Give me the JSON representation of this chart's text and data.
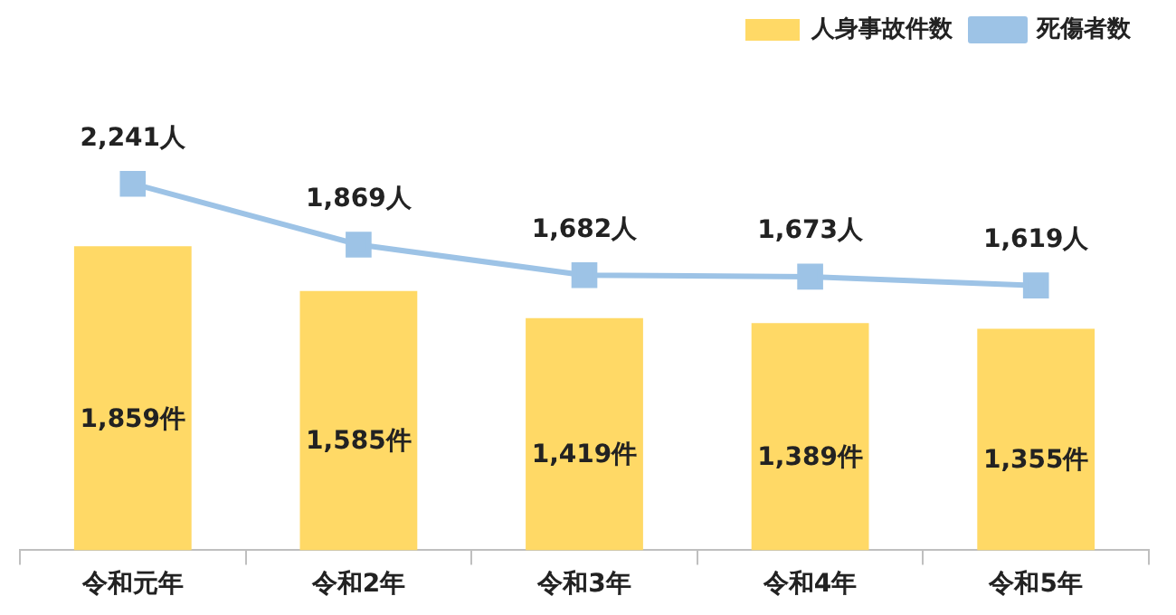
{
  "chart_data": {
    "type": "bar",
    "categories": [
      "令和元年",
      "令和2年",
      "令和3年",
      "令和4年",
      "令和5年"
    ],
    "series": [
      {
        "name": "人身事故件数",
        "color": "#ffd966",
        "values": [
          1859,
          1585,
          1419,
          1389,
          1355
        ],
        "value_labels": [
          "1,859件",
          "1,585件",
          "1,419件",
          "1,389件",
          "1,355件"
        ]
      },
      {
        "name": "死傷者数",
        "type": "line",
        "color": "#9dc3e6",
        "values": [
          2241,
          1869,
          1682,
          1673,
          1619
        ],
        "value_labels": [
          "2,241人",
          "1,869人",
          "1,682人",
          "1,673人",
          "1,619人"
        ]
      }
    ],
    "tick_labels": "x",
    "grid": false,
    "legend": "top right",
    "marker": "square"
  }
}
